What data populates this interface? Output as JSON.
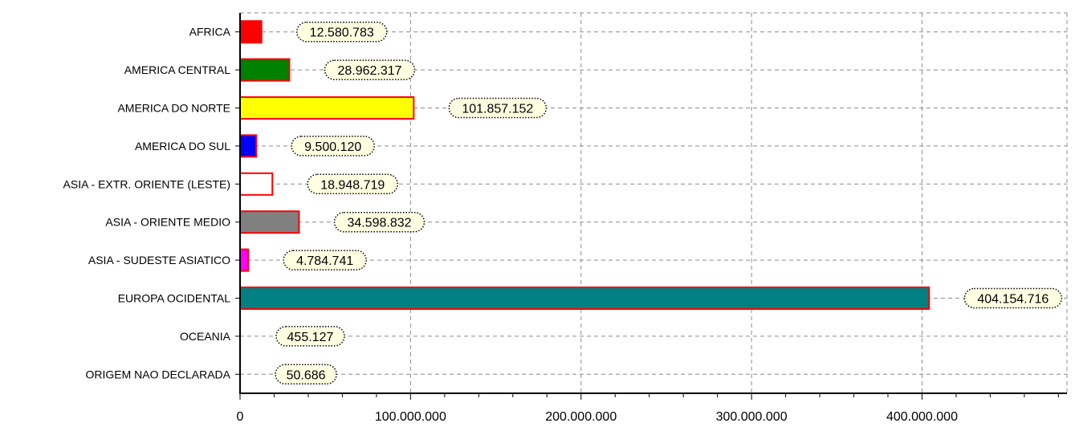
{
  "chart_data": {
    "type": "bar",
    "orientation": "horizontal",
    "categories": [
      "AFRICA",
      "AMERICA CENTRAL",
      "AMERICA DO NORTE",
      "AMERICA DO SUL",
      "ASIA - EXTR. ORIENTE (LESTE)",
      "ASIA - ORIENTE MEDIO",
      "ASIA - SUDESTE ASIATICO",
      "EUROPA OCIDENTAL",
      "OCEANIA",
      "ORIGEM NAO DECLARADA"
    ],
    "values": [
      12580783,
      28962317,
      101857152,
      9500120,
      18948719,
      34598832,
      4784741,
      404154716,
      455127,
      50686
    ],
    "value_labels": [
      "12.580.783",
      "28.962.317",
      "101.857.152",
      "9.500.120",
      "18.948.719",
      "34.598.832",
      "4.784.741",
      "404.154.716",
      "455.127",
      "50.686"
    ],
    "bar_fill_colors": [
      "#ff0000",
      "#008000",
      "#ffff00",
      "#0000ff",
      "#ffffff",
      "#808080",
      "#ff00ff",
      "#008080",
      "#ffffff",
      "#ffffff"
    ],
    "bar_border_color": "#ff0000",
    "label_bubble_color": "#ffffe1",
    "xlim": [
      0,
      485000000
    ],
    "x_ticks": [
      0,
      100000000,
      200000000,
      300000000,
      400000000
    ],
    "x_tick_labels": [
      "0",
      "100.000.000",
      "200.000.000",
      "300.000.000",
      "400.000.000"
    ],
    "grid": true,
    "grid_style": "dashed",
    "title": "",
    "xlabel": "",
    "ylabel": ""
  }
}
